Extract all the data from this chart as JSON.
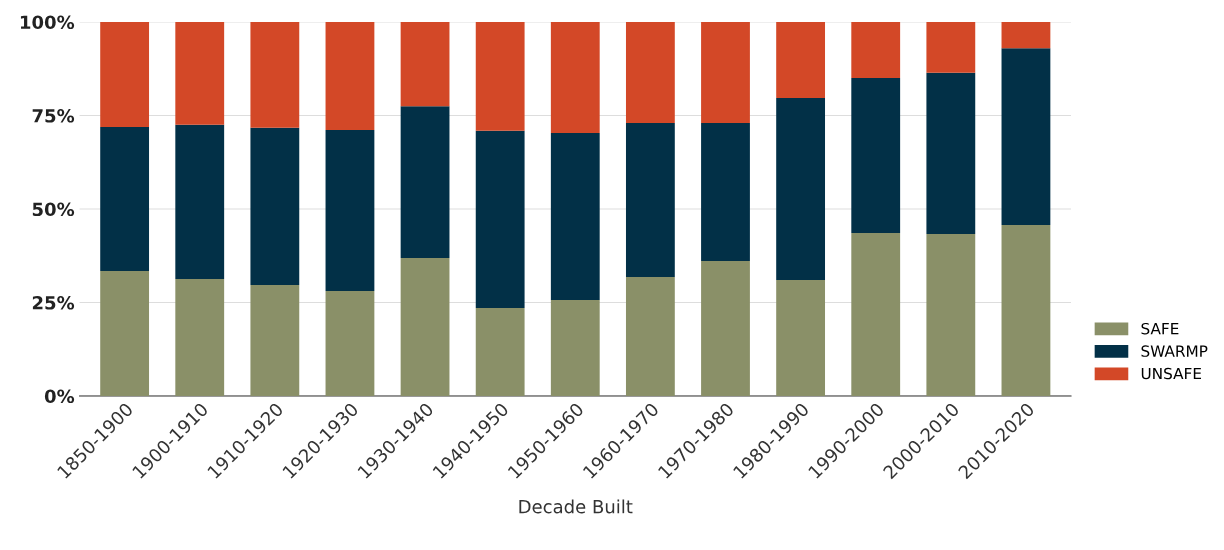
{
  "chart_data": {
    "type": "bar",
    "stacked": true,
    "xlabel": "Decade Built",
    "categories": [
      "1850-1900",
      "1900-1910",
      "1910-1920",
      "1920-1930",
      "1930-1940",
      "1940-1950",
      "1950-1960",
      "1960-1970",
      "1970-1980",
      "1980-1990",
      "1990-2000",
      "2000-2010",
      "2010-2020"
    ],
    "series": [
      {
        "name": "SAFE",
        "color": "#8a9068",
        "values": [
          33.4,
          31.3,
          29.7,
          28.1,
          36.9,
          23.5,
          25.7,
          31.8,
          36.1,
          31.0,
          43.6,
          43.3,
          45.7
        ]
      },
      {
        "name": "SWARMP",
        "color": "#023047",
        "values": [
          38.5,
          41.2,
          42.0,
          43.0,
          40.6,
          47.4,
          44.6,
          41.2,
          36.9,
          48.7,
          41.4,
          43.1,
          47.3
        ]
      },
      {
        "name": "UNSAFE",
        "color": "#d34827",
        "values": [
          28.1,
          27.5,
          28.3,
          28.9,
          22.5,
          29.1,
          29.7,
          27.0,
          27.0,
          20.3,
          15.0,
          13.6,
          7.0
        ]
      }
    ],
    "ylim": [
      0,
      100
    ],
    "yticks": [
      {
        "value": 0,
        "label": "0%"
      },
      {
        "value": 25,
        "label": "25%"
      },
      {
        "value": 50,
        "label": "50%"
      },
      {
        "value": 75,
        "label": "75%"
      },
      {
        "value": 100,
        "label": "100%"
      }
    ],
    "grid": "y",
    "legend": "bottom right"
  }
}
